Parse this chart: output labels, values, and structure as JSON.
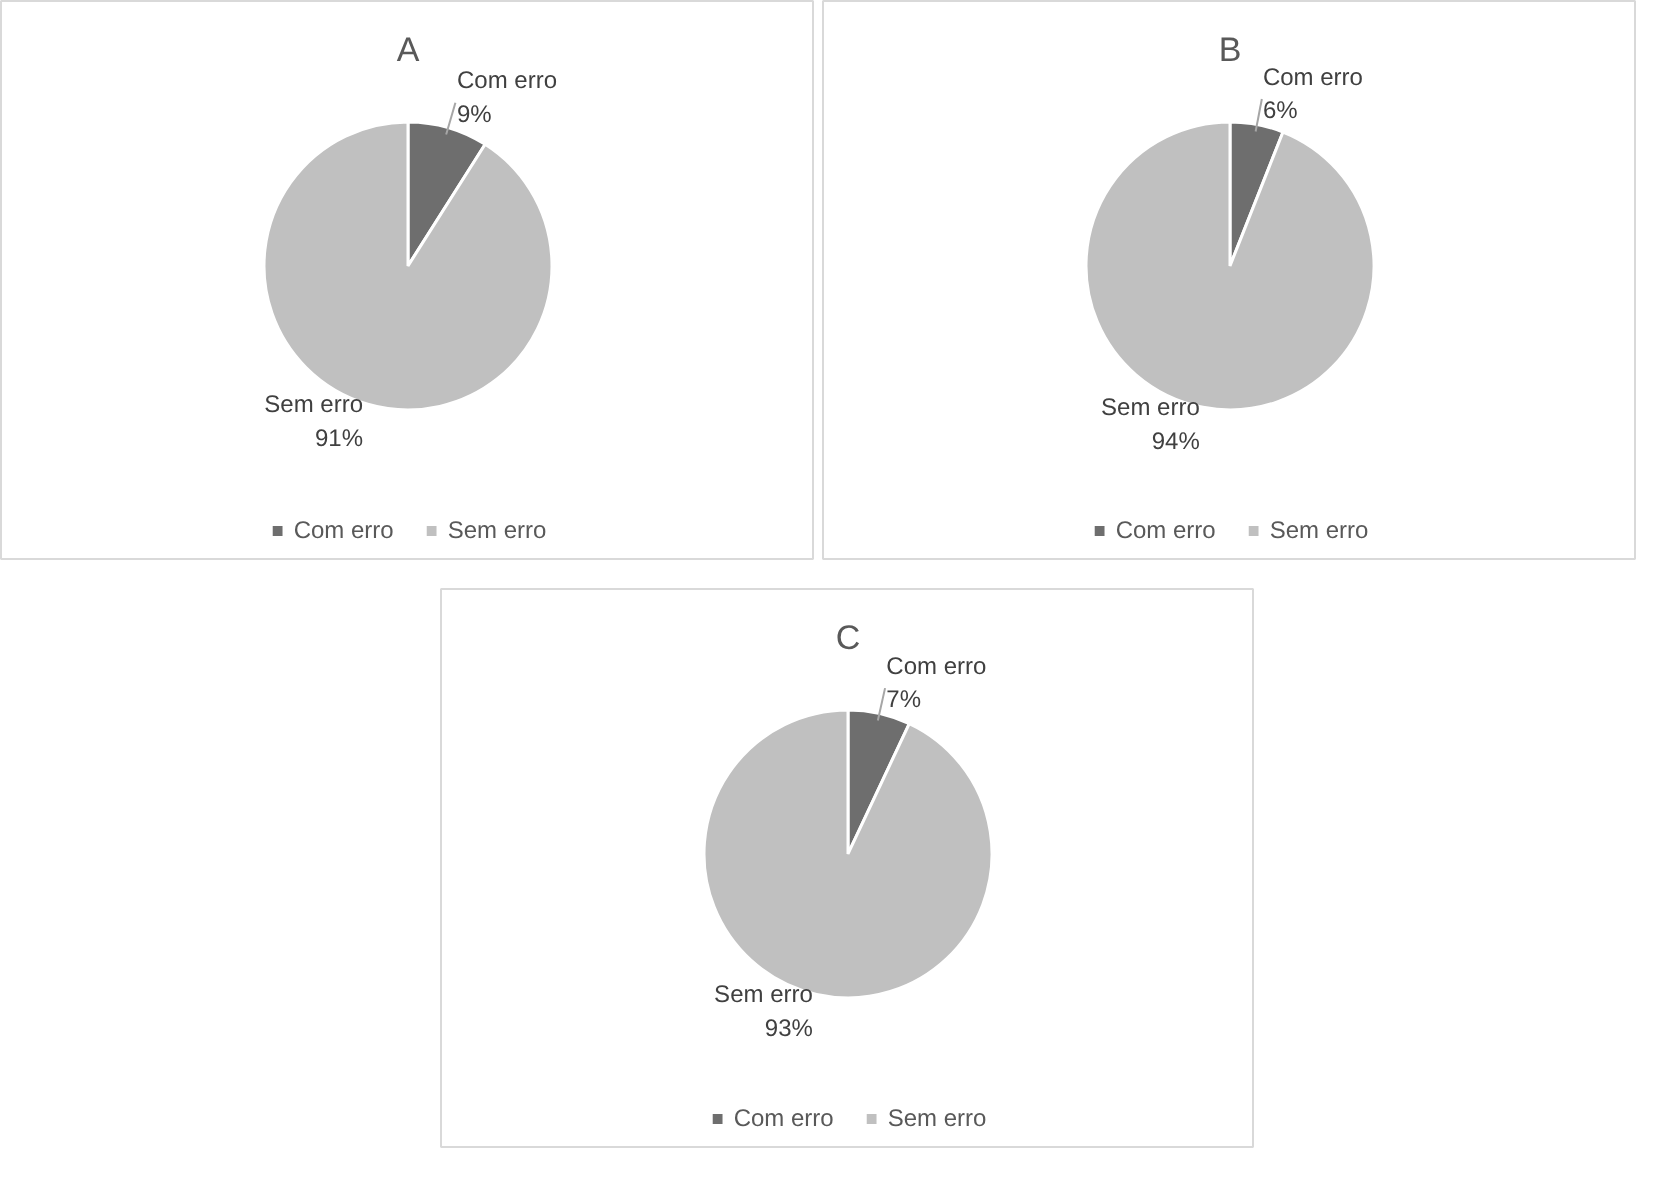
{
  "chart_data": [
    {
      "type": "pie",
      "title": "A",
      "categories": [
        "Com erro",
        "Sem erro"
      ],
      "values": [
        9,
        91
      ],
      "colors": [
        "#6e6e6e",
        "#c0c0c0"
      ],
      "value_labels": [
        "9%",
        "91%"
      ],
      "legend": "bottom"
    },
    {
      "type": "pie",
      "title": "B",
      "categories": [
        "Com erro",
        "Sem erro"
      ],
      "values": [
        6,
        94
      ],
      "colors": [
        "#6e6e6e",
        "#c0c0c0"
      ],
      "value_labels": [
        "6%",
        "94%"
      ],
      "legend": "bottom"
    },
    {
      "type": "pie",
      "title": "C",
      "categories": [
        "Com erro",
        "Sem erro"
      ],
      "values": [
        7,
        93
      ],
      "colors": [
        "#6e6e6e",
        "#c0c0c0"
      ],
      "value_labels": [
        "7%",
        "93%"
      ],
      "legend": "bottom"
    }
  ]
}
